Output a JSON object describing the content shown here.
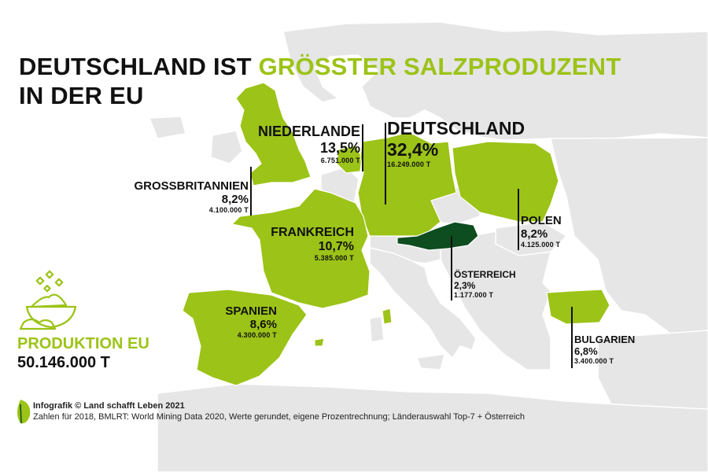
{
  "title": {
    "part1": "DEUTSCHLAND IST ",
    "highlight": "GRÖSSTER SALZPRODUZENT",
    "line2": "IN DER EU"
  },
  "colors": {
    "highlight": "#9cc317",
    "austria": "#0d4d1f",
    "land": "#e6e6e6",
    "sea": "#ffffff",
    "text": "#111111"
  },
  "countries": {
    "de": {
      "name": "DEUTSCHLAND",
      "percent": "32,4%",
      "tons": "16.249.000 T"
    },
    "nl": {
      "name": "NIEDERLANDE",
      "percent": "13,5%",
      "tons": "6.751.000 T"
    },
    "gb": {
      "name": "GROSSBRITANNIEN",
      "percent": "8,2%",
      "tons": "4.100.000 T"
    },
    "fr": {
      "name": "FRANKREICH",
      "percent": "10,7%",
      "tons": "5.385.000 T"
    },
    "es": {
      "name": "SPANIEN",
      "percent": "8,6%",
      "tons": "4.300.000 T"
    },
    "pl": {
      "name": "POLEN",
      "percent": "8,2%",
      "tons": "4.125.000 T"
    },
    "at": {
      "name": "ÖSTERREICH",
      "percent": "2,3%",
      "tons": "1.177.000 T"
    },
    "bg": {
      "name": "BULGARIEN",
      "percent": "6,8%",
      "tons": "3.400.000 T"
    }
  },
  "production": {
    "label": "PRODUKTION EU",
    "value": "50.146.000 T"
  },
  "icons": {
    "salt": "salt-bowl-icon",
    "logo": "leaf-logo-icon"
  },
  "footer": {
    "credit": "Infografik © Land schafft Leben 2021",
    "source": "Zahlen für 2018, BMLRT: World Mining Data 2020, Werte gerundet, eigene Prozentrechnung; Länderauswahl Top-7 + Österreich"
  }
}
